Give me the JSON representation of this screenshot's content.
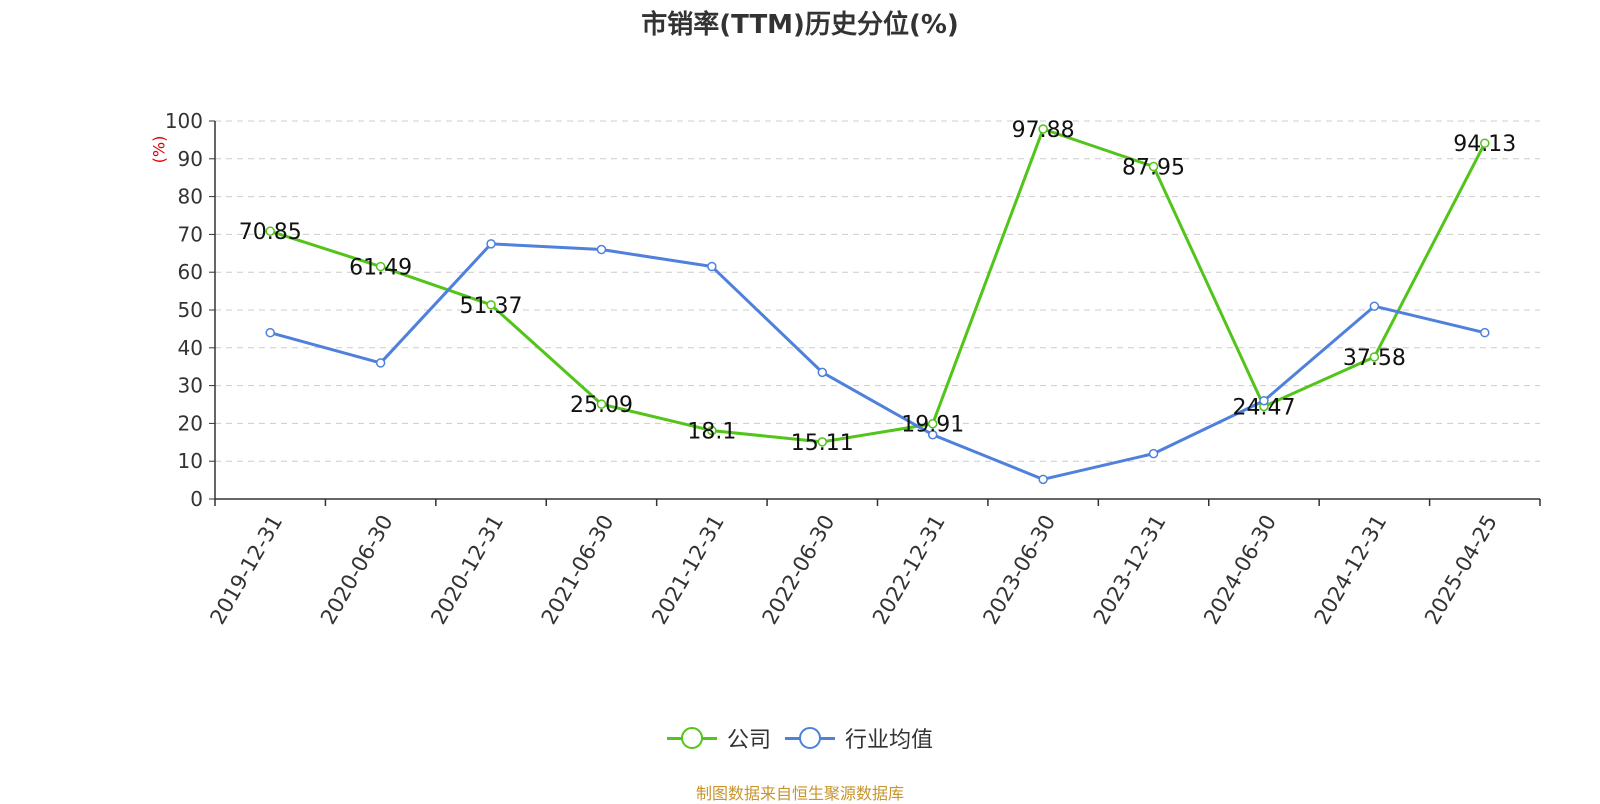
{
  "chart_data": {
    "type": "line",
    "title": "市销率(TTM)历史分位(%)",
    "ylabel": "(%)",
    "ylim": [
      0,
      100
    ],
    "yticks": [
      0,
      10,
      20,
      30,
      40,
      50,
      60,
      70,
      80,
      90,
      100
    ],
    "grid": true,
    "legend_position": "bottom",
    "categories": [
      "2019-12-31",
      "2020-06-30",
      "2020-12-31",
      "2021-06-30",
      "2021-12-31",
      "2022-06-30",
      "2022-12-31",
      "2023-06-30",
      "2023-12-31",
      "2024-06-30",
      "2024-12-31",
      "2025-04-25"
    ],
    "series": [
      {
        "name": "公司",
        "color": "#52c41a",
        "labels": true,
        "values": [
          70.85,
          61.49,
          51.37,
          25.09,
          18.1,
          15.11,
          19.91,
          97.88,
          87.95,
          24.47,
          37.58,
          94.13
        ]
      },
      {
        "name": "行业均值",
        "color": "#4e80dc",
        "labels": false,
        "values": [
          44,
          36,
          67.5,
          66,
          61.5,
          33.5,
          17,
          5.2,
          12,
          26,
          51,
          44
        ]
      }
    ],
    "source": "制图数据来自恒生聚源数据库"
  }
}
